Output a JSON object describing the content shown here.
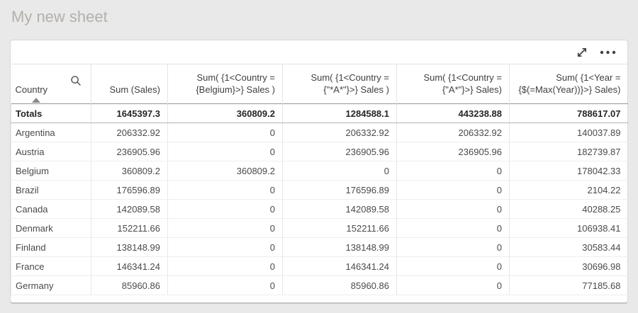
{
  "sheet": {
    "title": "My new sheet"
  },
  "toolbar": {
    "expand_icon": "fullscreen-expand",
    "more_icon": "more-options-ellipsis"
  },
  "colors": {
    "page_background": "#e9e9e9",
    "card_background": "#ffffff",
    "title_text": "#b4b0ab",
    "body_text": "#454545",
    "totals_text": "#262626",
    "grid_line": "#e7e7e7",
    "totals_border": "#949494"
  },
  "table": {
    "columns": [
      {
        "id": "country",
        "align": "left",
        "sortable": "ascending",
        "searchable": true,
        "lines": [
          "Country"
        ]
      },
      {
        "id": "sum-sales",
        "align": "right",
        "lines": [
          "Sum (Sales)"
        ]
      },
      {
        "id": "sum-belgium",
        "align": "right",
        "lines": [
          "Sum( {1<Country =",
          "{Belgium}>} Sales )"
        ]
      },
      {
        "id": "sum-star-a-star",
        "align": "right",
        "lines": [
          "Sum( {1<Country =",
          "{\"*A*\"}>} Sales )"
        ]
      },
      {
        "id": "sum-a-star",
        "align": "right",
        "lines": [
          "Sum( {1<Country =",
          "{\"A*\"}>} Sales)"
        ]
      },
      {
        "id": "sum-max-year",
        "align": "right",
        "lines": [
          "Sum( {1<Year =",
          "{$(=Max(Year))}>} Sales)"
        ]
      }
    ],
    "totals": {
      "label": "Totals",
      "values": [
        "1645397.3",
        "360809.2",
        "1284588.1",
        "443238.88",
        "788617.07"
      ]
    },
    "rows": [
      {
        "country": "Argentina",
        "values": [
          "206332.92",
          "0",
          "206332.92",
          "206332.92",
          "140037.89"
        ]
      },
      {
        "country": "Austria",
        "values": [
          "236905.96",
          "0",
          "236905.96",
          "236905.96",
          "182739.87"
        ]
      },
      {
        "country": "Belgium",
        "values": [
          "360809.2",
          "360809.2",
          "0",
          "0",
          "178042.33"
        ]
      },
      {
        "country": "Brazil",
        "values": [
          "176596.89",
          "0",
          "176596.89",
          "0",
          "2104.22"
        ]
      },
      {
        "country": "Canada",
        "values": [
          "142089.58",
          "0",
          "142089.58",
          "0",
          "40288.25"
        ]
      },
      {
        "country": "Denmark",
        "values": [
          "152211.66",
          "0",
          "152211.66",
          "0",
          "106938.41"
        ]
      },
      {
        "country": "Finland",
        "values": [
          "138148.99",
          "0",
          "138148.99",
          "0",
          "30583.44"
        ]
      },
      {
        "country": "France",
        "values": [
          "146341.24",
          "0",
          "146341.24",
          "0",
          "30696.98"
        ]
      },
      {
        "country": "Germany",
        "values": [
          "85960.86",
          "0",
          "85960.86",
          "0",
          "77185.68"
        ]
      }
    ]
  }
}
